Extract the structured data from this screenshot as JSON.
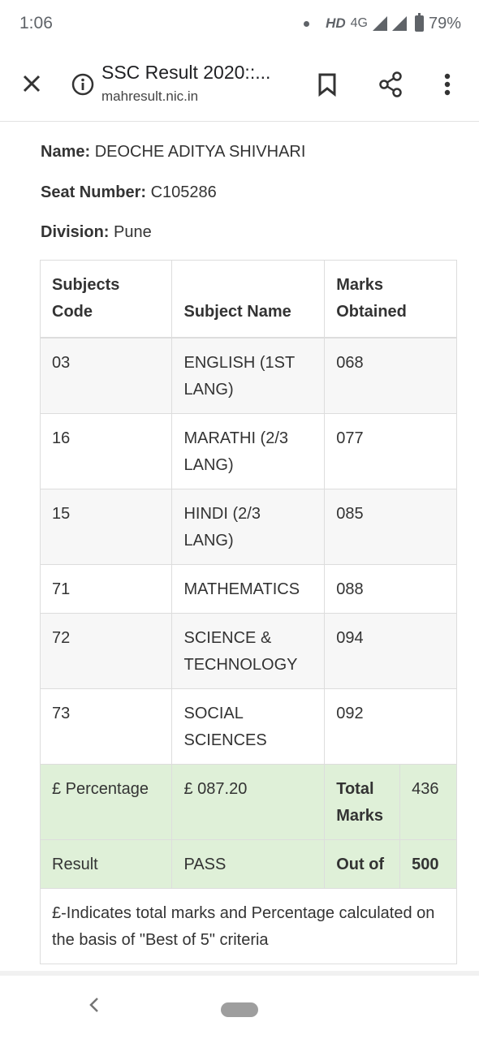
{
  "status_bar": {
    "time": "1:06",
    "network": "HD",
    "network_type": "4G",
    "battery": "79%"
  },
  "toolbar": {
    "title": "SSC Result 2020::...",
    "url": "mahresult.nic.in",
    "icons": [
      "close-icon",
      "info-icon",
      "bookmark-icon",
      "share-icon",
      "more-vert-icon"
    ]
  },
  "student": {
    "name_label": "Name",
    "name_value": "DEOCHE ADITYA SHIVHARI",
    "seat_label": "Seat Number",
    "seat_value": "C105286",
    "division_label": "Division",
    "division_value": "Pune"
  },
  "table": {
    "headers": {
      "code": "Subjects Code",
      "name": "Subject Name",
      "marks": "Marks Obtained"
    },
    "rows": [
      {
        "code": "03",
        "name": "ENGLISH (1ST LANG)",
        "marks": "068"
      },
      {
        "code": "16",
        "name": "MARATHI (2/3 LANG)",
        "marks": "077"
      },
      {
        "code": "15",
        "name": "HINDI (2/3 LANG)",
        "marks": "085"
      },
      {
        "code": "71",
        "name": "MATHEMATICS",
        "marks": "088"
      },
      {
        "code": "72",
        "name": "SCIENCE & TECHNOLOGY",
        "marks": "094"
      },
      {
        "code": "73",
        "name": "SOCIAL SCIENCES",
        "marks": "092"
      }
    ],
    "percentage_label": "£ Percentage",
    "percentage_value": "£ 087.20",
    "total_label": "Total Marks",
    "total_value": "436",
    "result_label": "Result",
    "result_value": "PASS",
    "outof_label": "Out of",
    "outof_value": "500",
    "note": "£-Indicates total marks and Percentage calculated on the basis of \"Best of 5\" criteria"
  },
  "colors": {
    "summary_bg": "#dff0d8",
    "stripe_bg": "#f7f7f7",
    "border": "#dddddd"
  }
}
